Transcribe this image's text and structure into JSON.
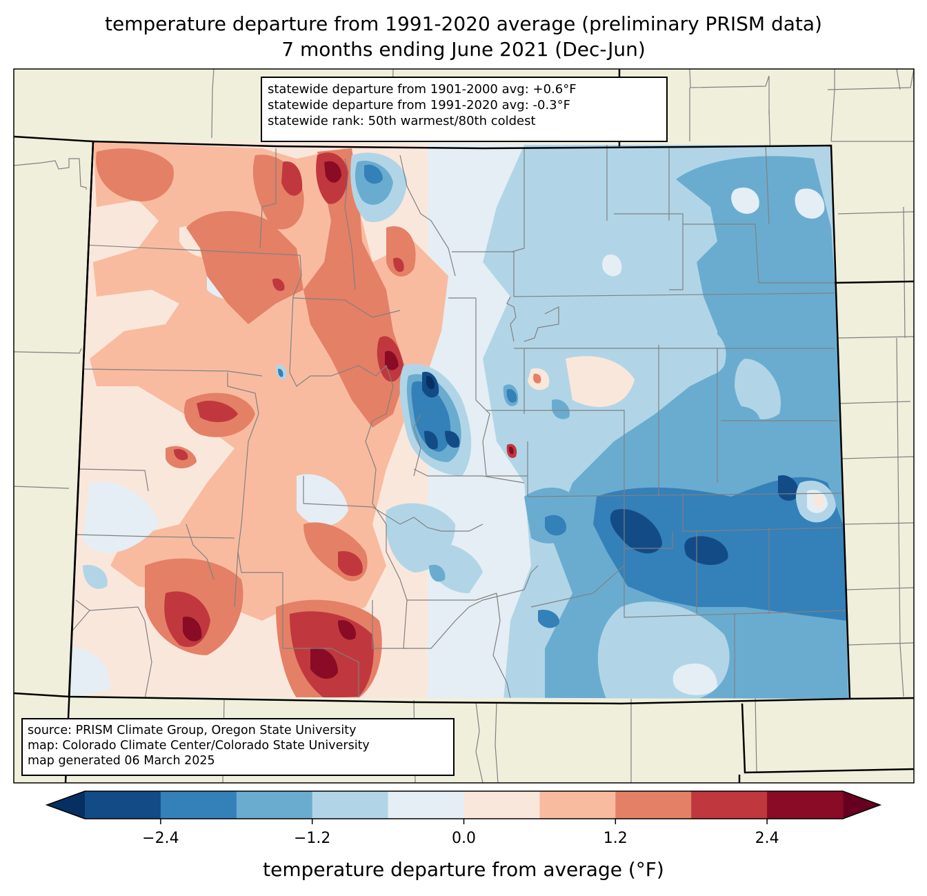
{
  "title": {
    "line1": "temperature departure from 1991-2020 average (preliminary PRISM data)",
    "line2": "7 months ending June 2021 (Dec-Jun)"
  },
  "stats_box": {
    "lines": [
      "statewide departure from 1901-2000 avg: +0.6°F",
      "statewide departure from 1991-2020 avg: -0.3°F",
      "statewide rank: 50th warmest/80th coldest"
    ]
  },
  "source_box": {
    "lines": [
      "source: PRISM Climate Group, Oregon State University",
      "map: Colorado Climate Center/Colorado State University",
      "map generated 06 March 2025"
    ]
  },
  "colorbar": {
    "label": "temperature departure from average (°F)",
    "levels": [
      -3.0,
      -2.4,
      -1.8,
      -1.2,
      -0.6,
      0.0,
      0.6,
      1.2,
      1.8,
      2.4,
      3.0
    ],
    "ticks": [
      {
        "value": -2.4,
        "label": "−2.4"
      },
      {
        "value": -1.2,
        "label": "−1.2"
      },
      {
        "value": 0.0,
        "label": "0.0"
      },
      {
        "value": 1.2,
        "label": "1.2"
      },
      {
        "value": 2.4,
        "label": "2.4"
      }
    ],
    "under_color": "#053061",
    "over_color": "#67001f",
    "colors": [
      "#134b87",
      "#3480b9",
      "#6aacd0",
      "#b1d5e7",
      "#e4eef4",
      "#fae7dc",
      "#f8bba0",
      "#e48066",
      "#c0383e",
      "#8a0b25"
    ],
    "extend": "both"
  },
  "map_colors": {
    "land": "#efefdc",
    "county_line": "#808080",
    "state_line": "#000000"
  }
}
